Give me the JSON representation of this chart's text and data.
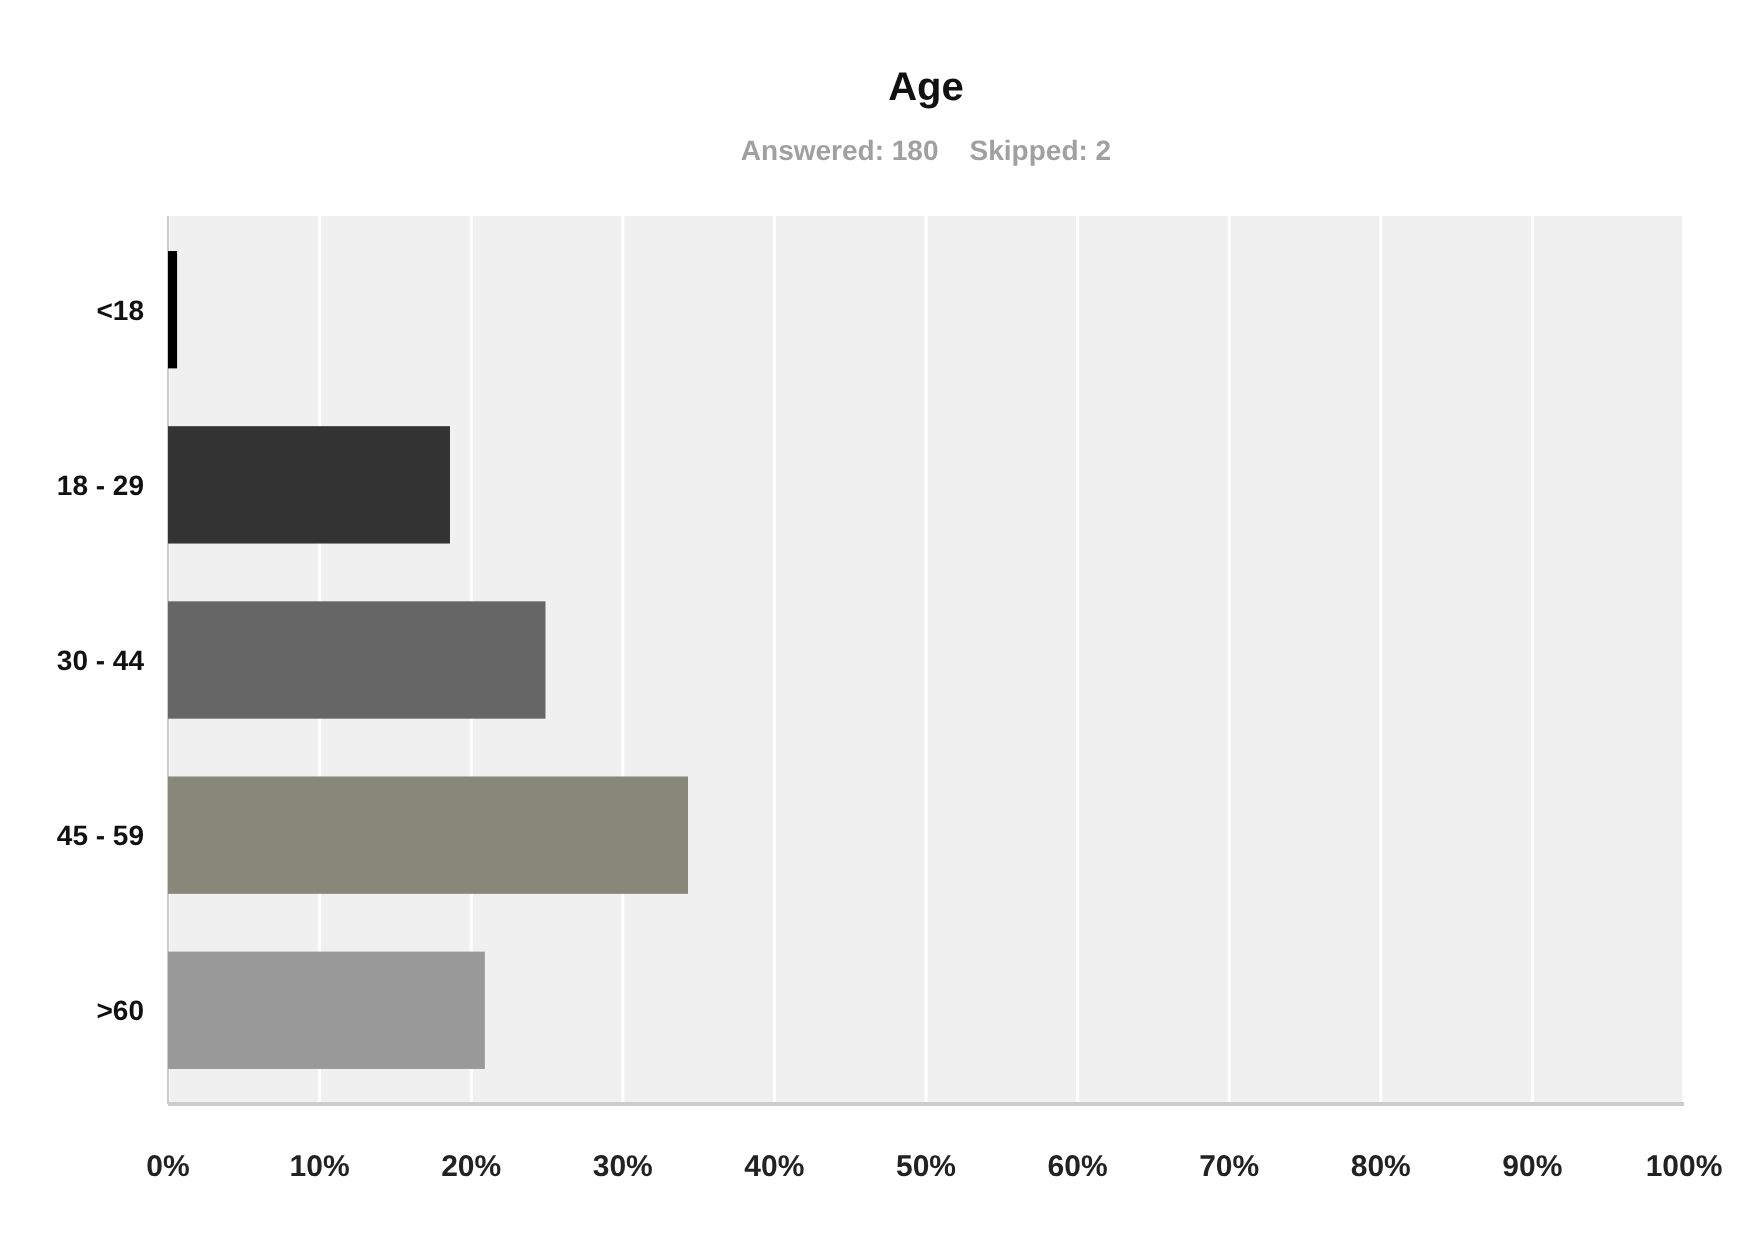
{
  "chart_data": {
    "type": "bar",
    "orientation": "horizontal",
    "title": "Age",
    "subtitle": "Answered: 180    Skipped: 2",
    "categories": [
      "<18",
      "18 - 29",
      "30 - 44",
      "45 - 59",
      ">60"
    ],
    "values": [
      0.6,
      18.6,
      24.9,
      34.3,
      20.9
    ],
    "colors": [
      "#000000",
      "#333333",
      "#666666",
      "#87887a",
      "#999999"
    ],
    "xlim": [
      0,
      100
    ],
    "xticks": [
      {
        "value": 0,
        "label": "0%"
      },
      {
        "value": 10,
        "label": "10%"
      },
      {
        "value": 20,
        "label": "20%"
      },
      {
        "value": 30,
        "label": "30%"
      },
      {
        "value": 40,
        "label": "40%"
      },
      {
        "value": 50,
        "label": "50%"
      },
      {
        "value": 60,
        "label": "60%"
      },
      {
        "value": 70,
        "label": "70%"
      },
      {
        "value": 80,
        "label": "80%"
      },
      {
        "value": 90,
        "label": "90%"
      },
      {
        "value": 100,
        "label": "100%"
      }
    ],
    "grid": "x"
  }
}
